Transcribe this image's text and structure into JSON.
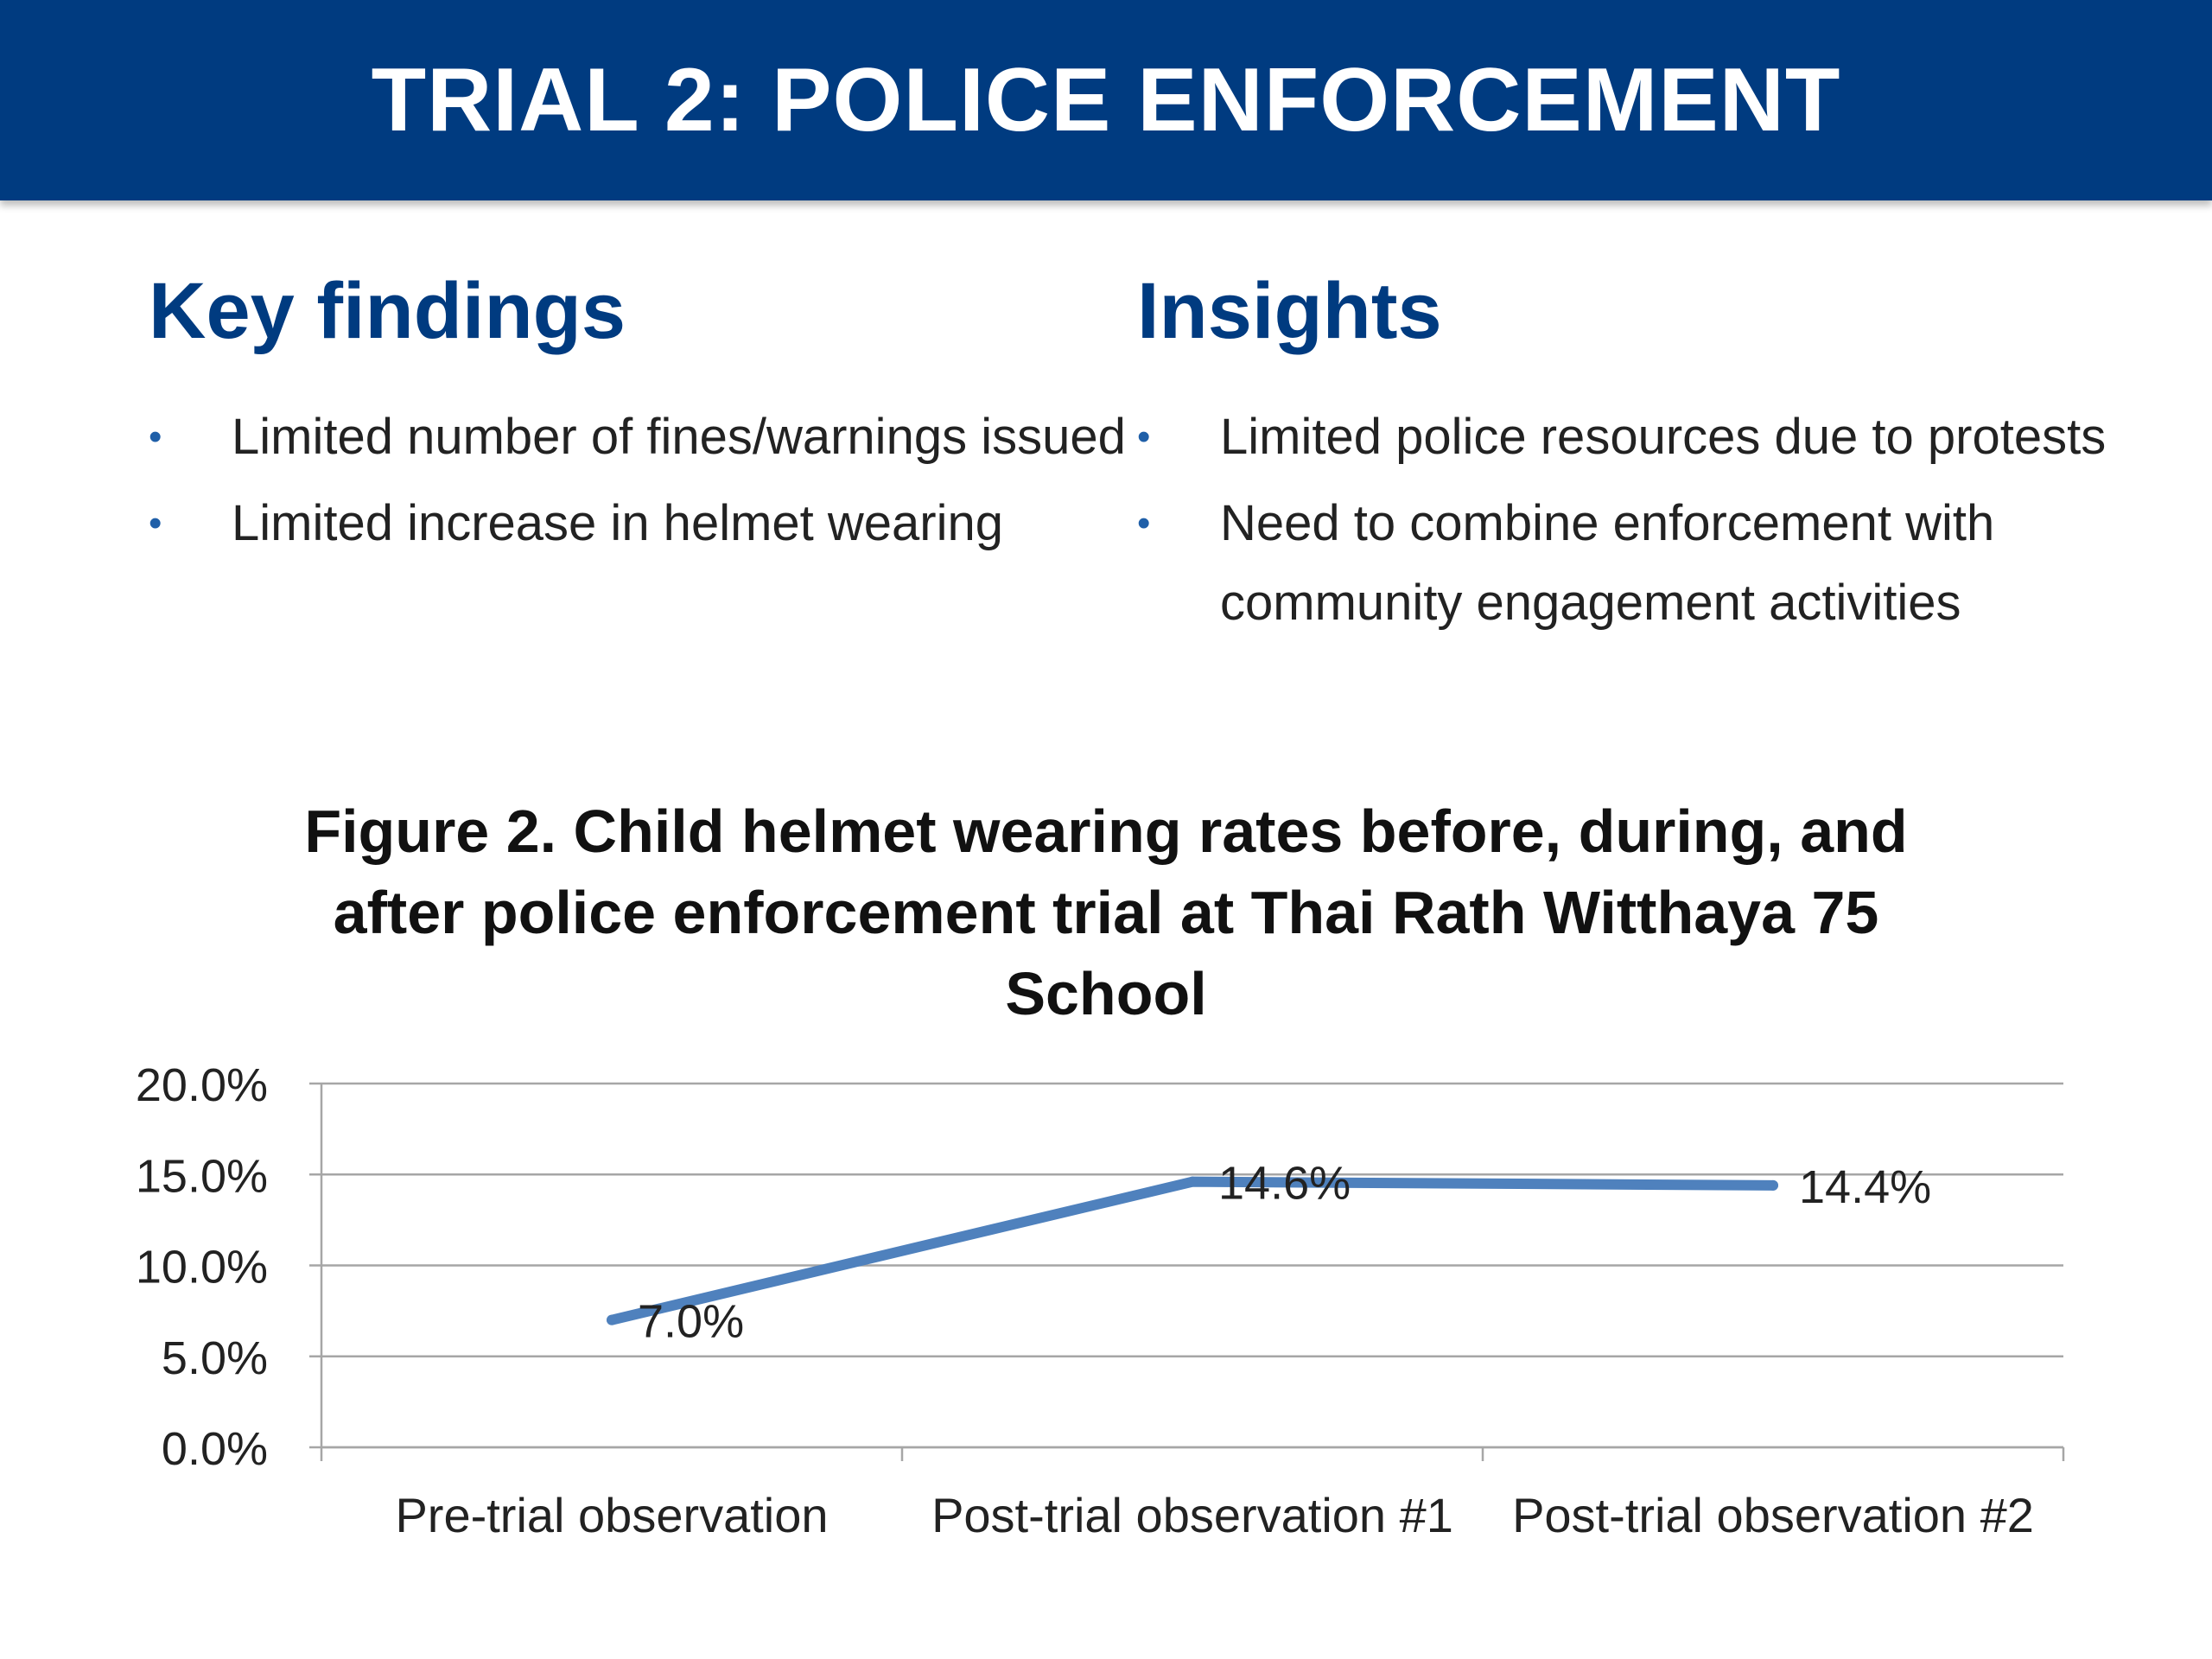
{
  "header": {
    "title": "TRIAL 2: POLICE ENFORCEMENT"
  },
  "key_findings": {
    "heading": "Key findings",
    "items": [
      "Limited number of fines/warnings issued",
      "Limited increase in helmet wearing"
    ]
  },
  "insights": {
    "heading": "Insights",
    "items": [
      "Limited police resources due to protests",
      "Need to combine enforcement with community engagement activities"
    ]
  },
  "colors": {
    "header_bg": "#003b80",
    "heading": "#003b80",
    "line": "#4f81bd",
    "bullet": "#1f5fa8"
  },
  "chart_data": {
    "type": "line",
    "title": "Figure 2. Child helmet wearing rates before, during, and after police enforcement trial at Thai Rath Witthaya 75 School",
    "categories": [
      "Pre-trial observation",
      "Post-trial observation #1",
      "Post-trial observation #2"
    ],
    "values": [
      7.0,
      14.6,
      14.4
    ],
    "data_labels": [
      "7.0%",
      "14.6%",
      "14.4%"
    ],
    "ylim": [
      0,
      20
    ],
    "yticks": [
      0,
      5,
      10,
      15,
      20
    ],
    "ytick_labels": [
      "0.0%",
      "5.0%",
      "10.0%",
      "15.0%",
      "20.0%"
    ],
    "grid": true,
    "legend": "none",
    "xlabel": "",
    "ylabel": ""
  }
}
